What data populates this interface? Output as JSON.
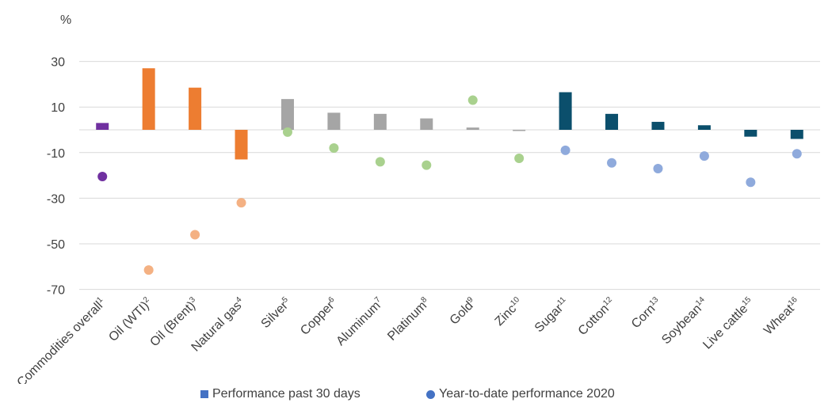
{
  "chart_data": {
    "type": "bar",
    "ylabel": "%",
    "ylim": [
      -75,
      40
    ],
    "yticks": [
      30,
      10,
      -10,
      -30,
      -50,
      -70
    ],
    "grid": true,
    "legend_position": "bottom",
    "categories": [
      {
        "name": "Commodities overall",
        "sup": "1"
      },
      {
        "name": "Oil (WTI)",
        "sup": "2"
      },
      {
        "name": "Oil (Brent)",
        "sup": "3"
      },
      {
        "name": "Natural gas",
        "sup": "4"
      },
      {
        "name": "Silver",
        "sup": "5"
      },
      {
        "name": "Copper",
        "sup": "6"
      },
      {
        "name": "Aluminum",
        "sup": "7"
      },
      {
        "name": "Platinum",
        "sup": "8"
      },
      {
        "name": "Gold",
        "sup": "9"
      },
      {
        "name": "Zinc",
        "sup": "10"
      },
      {
        "name": "Sugar",
        "sup": "11"
      },
      {
        "name": "Cotton",
        "sup": "12"
      },
      {
        "name": "Corn",
        "sup": "13"
      },
      {
        "name": "Soybean",
        "sup": "14"
      },
      {
        "name": "Live cattle",
        "sup": "15"
      },
      {
        "name": "Wheat",
        "sup": "16"
      }
    ],
    "series": [
      {
        "name": "Performance past 30 days",
        "kind": "bar",
        "legend_color": "#4472c4",
        "values": [
          3,
          27,
          18.5,
          -13,
          13.5,
          7.5,
          7,
          5,
          1,
          -0.5,
          16.5,
          7,
          3.5,
          2,
          -3,
          -4
        ]
      },
      {
        "name": "Year-to-date performance 2020",
        "kind": "dot",
        "legend_color": "#4472c4",
        "values": [
          -20.5,
          -61.5,
          -46,
          -32,
          -1,
          -8,
          -14,
          -15.5,
          13,
          -12.5,
          -9,
          -14.5,
          -17,
          -11.5,
          -23,
          -10.5
        ]
      }
    ],
    "bar_colors": [
      "#7030a0",
      "#ed7d31",
      "#ed7d31",
      "#ed7d31",
      "#a5a5a5",
      "#a5a5a5",
      "#a5a5a5",
      "#a5a5a5",
      "#a5a5a5",
      "#a5a5a5",
      "#0b4f6c",
      "#0b4f6c",
      "#0b4f6c",
      "#0b4f6c",
      "#0b4f6c",
      "#0b4f6c"
    ],
    "dot_colors": [
      "#7030a0",
      "#f4b183",
      "#f4b183",
      "#f4b183",
      "#a9d18e",
      "#a9d18e",
      "#a9d18e",
      "#a9d18e",
      "#a9d18e",
      "#a9d18e",
      "#8faadc",
      "#8faadc",
      "#8faadc",
      "#8faadc",
      "#8faadc",
      "#8faadc"
    ],
    "grid_color": "#d9d9d9"
  }
}
